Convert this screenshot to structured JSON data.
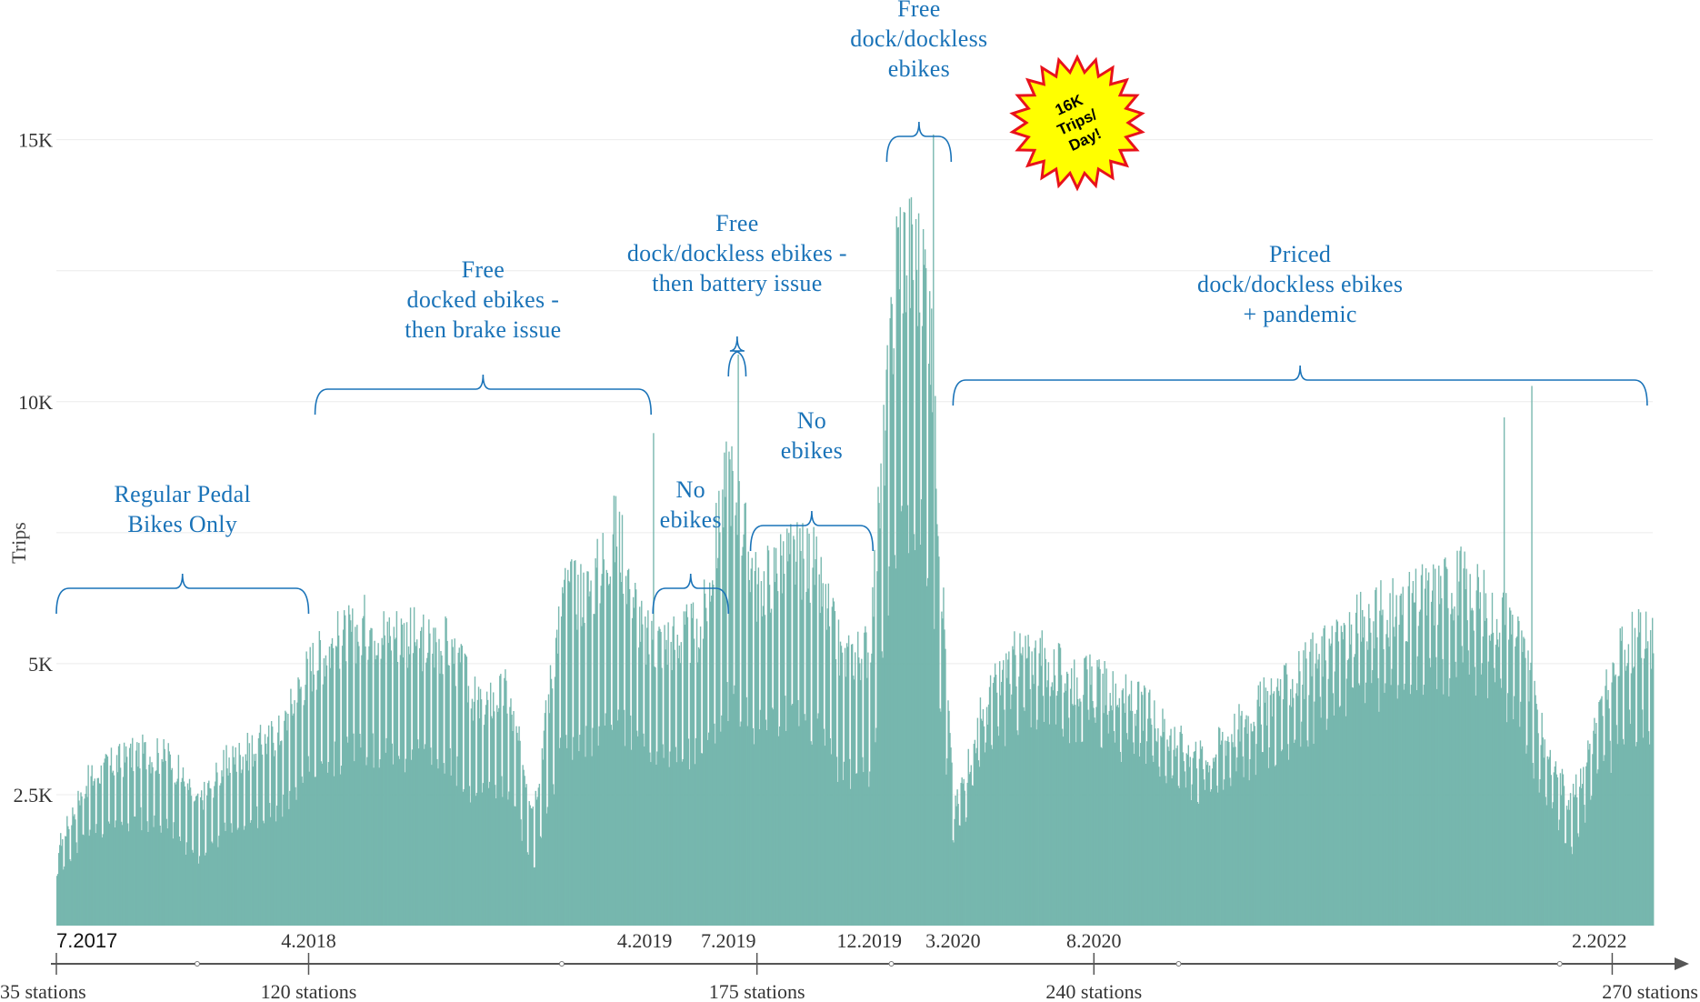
{
  "chart_data": {
    "type": "bar",
    "title": "",
    "ylabel": "Trips",
    "xlabel": "",
    "ylim": [
      0,
      16000
    ],
    "yticks": [
      {
        "value": 2500,
        "label": "2.5K"
      },
      {
        "value": 5000,
        "label": "5K"
      },
      {
        "value": 10000,
        "label": "10K"
      },
      {
        "value": 15000,
        "label": "15K"
      }
    ],
    "grid": true,
    "bar_color": "#6fb3a9",
    "annotation_color": "#1a73b8",
    "x_range": [
      "2017-07-01",
      "2022-03-31"
    ],
    "date_ticks": [
      {
        "date": "2017-07-01",
        "label": "7.2017"
      },
      {
        "date": "2018-04-01",
        "label": "4.2018"
      },
      {
        "date": "2019-04-01",
        "label": "4.2019"
      },
      {
        "date": "2019-07-01",
        "label": "7.2019"
      },
      {
        "date": "2019-12-01",
        "label": "12.2019"
      },
      {
        "date": "2020-03-01",
        "label": "3.2020"
      },
      {
        "date": "2020-08-01",
        "label": "8.2020"
      },
      {
        "date": "2022-02-01",
        "label": "2.2022"
      }
    ],
    "station_ticks": [
      {
        "date": "2017-07-01",
        "label": "35 stations"
      },
      {
        "date": "2018-04-01",
        "label": "120 stations"
      },
      {
        "date": "2019-08-01",
        "label": "175 stations"
      },
      {
        "date": "2020-08-01",
        "label": "240 stations"
      },
      {
        "date": "2022-02-15",
        "label": "270 stations"
      }
    ],
    "daily_trend": [
      {
        "date": "2017-07-01",
        "weekday": 1500,
        "weekend": 900
      },
      {
        "date": "2017-08-01",
        "weekday": 2800,
        "weekend": 1800
      },
      {
        "date": "2017-09-01",
        "weekday": 3200,
        "weekend": 2000
      },
      {
        "date": "2017-10-01",
        "weekday": 3400,
        "weekend": 2100
      },
      {
        "date": "2017-11-01",
        "weekday": 3300,
        "weekend": 2000
      },
      {
        "date": "2017-12-01",
        "weekday": 2400,
        "weekend": 1200
      },
      {
        "date": "2018-01-01",
        "weekday": 3200,
        "weekend": 1900
      },
      {
        "date": "2018-02-01",
        "weekday": 3500,
        "weekend": 2100
      },
      {
        "date": "2018-03-01",
        "weekday": 3800,
        "weekend": 2300
      },
      {
        "date": "2018-04-01",
        "weekday": 5100,
        "weekend": 3100
      },
      {
        "date": "2018-05-01",
        "weekday": 5600,
        "weekend": 3300
      },
      {
        "date": "2018-06-01",
        "weekday": 5900,
        "weekend": 3500
      },
      {
        "date": "2018-07-01",
        "weekday": 5800,
        "weekend": 3400
      },
      {
        "date": "2018-08-01",
        "weekday": 5600,
        "weekend": 3300
      },
      {
        "date": "2018-09-01",
        "weekday": 5500,
        "weekend": 3200
      },
      {
        "date": "2018-10-01",
        "weekday": 4300,
        "weekend": 2500
      },
      {
        "date": "2018-11-01",
        "weekday": 4600,
        "weekend": 2700
      },
      {
        "date": "2018-12-01",
        "weekday": 2300,
        "weekend": 1200
      },
      {
        "date": "2019-01-01",
        "weekday": 6500,
        "weekend": 3600
      },
      {
        "date": "2019-02-01",
        "weekday": 6600,
        "weekend": 3700
      },
      {
        "date": "2019-03-01",
        "weekday": 7800,
        "weekend": 4200
      },
      {
        "date": "2019-04-01",
        "weekday": 5600,
        "weekend": 3400
      },
      {
        "date": "2019-05-01",
        "weekday": 5600,
        "weekend": 3300
      },
      {
        "date": "2019-06-01",
        "weekday": 5800,
        "weekend": 3400
      },
      {
        "date": "2019-07-01",
        "weekday": 9000,
        "weekend": 4500
      },
      {
        "date": "2019-08-01",
        "weekday": 6600,
        "weekend": 3800
      },
      {
        "date": "2019-09-01",
        "weekday": 7300,
        "weekend": 4100
      },
      {
        "date": "2019-10-01",
        "weekday": 7100,
        "weekend": 3900
      },
      {
        "date": "2019-11-01",
        "weekday": 5200,
        "weekend": 3000
      },
      {
        "date": "2019-12-01",
        "weekday": 5500,
        "weekend": 3000
      },
      {
        "date": "2020-01-01",
        "weekday": 13500,
        "weekend": 8000
      },
      {
        "date": "2020-02-01",
        "weekday": 12800,
        "weekend": 7500
      },
      {
        "date": "2020-03-01",
        "weekday": 2200,
        "weekend": 1600
      },
      {
        "date": "2020-04-01",
        "weekday": 4200,
        "weekend": 3200
      },
      {
        "date": "2020-05-01",
        "weekday": 5200,
        "weekend": 4100
      },
      {
        "date": "2020-06-01",
        "weekday": 5300,
        "weekend": 4300
      },
      {
        "date": "2020-07-01",
        "weekday": 4900,
        "weekend": 4000
      },
      {
        "date": "2020-08-01",
        "weekday": 4800,
        "weekend": 3900
      },
      {
        "date": "2020-09-01",
        "weekday": 4500,
        "weekend": 3600
      },
      {
        "date": "2020-10-01",
        "weekday": 4200,
        "weekend": 3300
      },
      {
        "date": "2020-11-01",
        "weekday": 3600,
        "weekend": 2800
      },
      {
        "date": "2020-12-01",
        "weekday": 3300,
        "weekend": 2600
      },
      {
        "date": "2021-01-01",
        "weekday": 3900,
        "weekend": 3000
      },
      {
        "date": "2021-02-01",
        "weekday": 4400,
        "weekend": 3400
      },
      {
        "date": "2021-03-01",
        "weekday": 4700,
        "weekend": 3600
      },
      {
        "date": "2021-04-01",
        "weekday": 5300,
        "weekend": 4100
      },
      {
        "date": "2021-05-01",
        "weekday": 5700,
        "weekend": 4400
      },
      {
        "date": "2021-06-01",
        "weekday": 6100,
        "weekend": 4600
      },
      {
        "date": "2021-07-01",
        "weekday": 6200,
        "weekend": 4700
      },
      {
        "date": "2021-08-01",
        "weekday": 6500,
        "weekend": 4900
      },
      {
        "date": "2021-09-01",
        "weekday": 6800,
        "weekend": 5100
      },
      {
        "date": "2021-10-01",
        "weekday": 6300,
        "weekend": 4800
      },
      {
        "date": "2021-11-01",
        "weekday": 5900,
        "weekend": 4400
      },
      {
        "date": "2021-12-01",
        "weekday": 3700,
        "weekend": 2600
      },
      {
        "date": "2022-01-01",
        "weekday": 2400,
        "weekend": 1500
      },
      {
        "date": "2022-02-01",
        "weekday": 4200,
        "weekend": 3000
      },
      {
        "date": "2022-03-01",
        "weekday": 5600,
        "weekend": 3900
      }
    ],
    "notable_peaks": [
      {
        "date": "2019-04-10",
        "value": 9400
      },
      {
        "date": "2019-07-11",
        "value": 10900
      },
      {
        "date": "2020-02-08",
        "value": 15100
      },
      {
        "date": "2021-10-20",
        "value": 9700
      },
      {
        "date": "2021-11-19",
        "value": 10300
      }
    ],
    "annotations": [
      {
        "lines": [
          "Regular Pedal",
          "Bikes Only"
        ],
        "from": "2017-07-01",
        "to": "2018-04-01"
      },
      {
        "lines": [
          "Free",
          "docked ebikes -",
          "then brake issue"
        ],
        "from": "2018-04-08",
        "to": "2019-04-08"
      },
      {
        "lines": [
          "No",
          "ebikes"
        ],
        "from": "2019-04-10",
        "to": "2019-07-01"
      },
      {
        "lines": [
          "Free",
          "dock/dockless ebikes -",
          "then battery issue"
        ],
        "from": "2019-07-01",
        "to": "2019-07-20"
      },
      {
        "lines": [
          "No",
          "ebikes"
        ],
        "from": "2019-07-25",
        "to": "2019-12-05"
      },
      {
        "lines": [
          "Free",
          "dock/dockless",
          "ebikes"
        ],
        "from": "2019-12-20",
        "to": "2020-02-28"
      },
      {
        "lines": [
          "Priced",
          "dock/dockless ebikes",
          "+ pandemic"
        ],
        "from": "2020-03-01",
        "to": "2022-03-25"
      }
    ],
    "callout": {
      "lines": [
        "16K",
        "Trips/",
        "Day!"
      ],
      "fill": "#ffff00",
      "stroke": "#e8121b"
    }
  }
}
